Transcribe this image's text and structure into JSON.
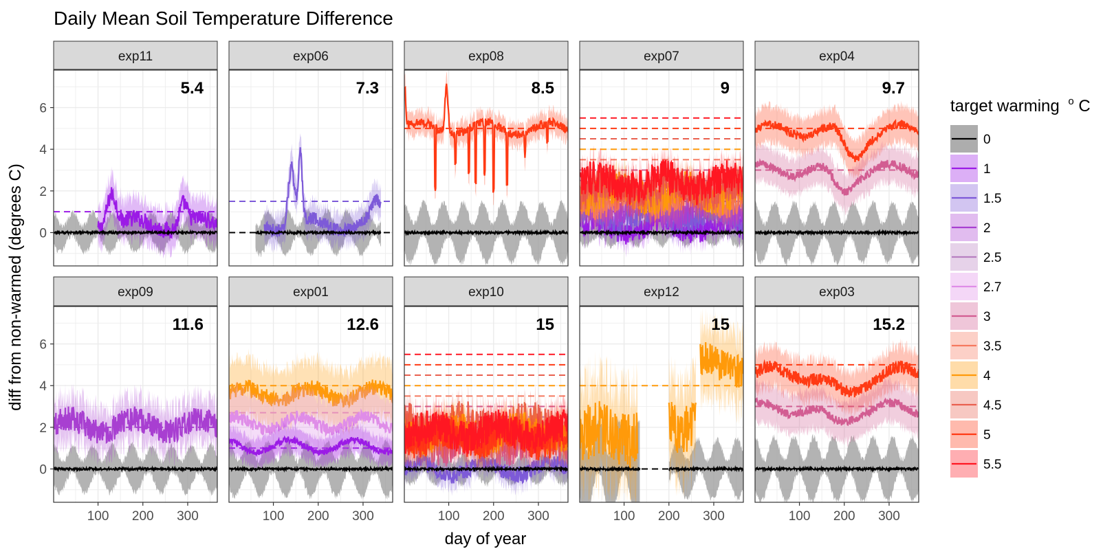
{
  "chart_data": {
    "type": "line",
    "title": "Daily Mean Soil Temperature Difference",
    "xlabel": "day of year",
    "ylabel": "diff from non-warmed (degrees C)",
    "xlim": [
      1,
      366
    ],
    "ylim": [
      -1.6,
      7.8
    ],
    "x_ticks": [
      100,
      200,
      300
    ],
    "y_ticks": [
      0,
      2,
      4,
      6
    ],
    "grid": true,
    "legend": {
      "title": "target warming",
      "title_sup": "o",
      "title_suffix": "C",
      "placement": "right",
      "entries": [
        {
          "label": "0",
          "color": "#000000"
        },
        {
          "label": "1",
          "color": "#9b1be6"
        },
        {
          "label": "1.5",
          "color": "#7d5ad8"
        },
        {
          "label": "2",
          "color": "#a83fd1"
        },
        {
          "label": "2.5",
          "color": "#b77ec0"
        },
        {
          "label": "2.7",
          "color": "#df8de8"
        },
        {
          "label": "3",
          "color": "#d25d92"
        },
        {
          "label": "3.5",
          "color": "#f5795f"
        },
        {
          "label": "4",
          "color": "#ff9a0a"
        },
        {
          "label": "4.5",
          "color": "#e9604f"
        },
        {
          "label": "5",
          "color": "#ff3a14"
        },
        {
          "label": "5.5",
          "color": "#ff1722"
        }
      ]
    },
    "panels": [
      {
        "name": "exp11",
        "label": "5.4",
        "targets": [
          1
        ],
        "series": [
          {
            "target": 1,
            "start": 100,
            "end": 366,
            "base": 0.4,
            "amp": 0.4,
            "band": 0.8,
            "spikes": [
              [
                130,
                1.6,
                15
              ],
              [
                290,
                1.0,
                12
              ]
            ]
          }
        ],
        "control": {
          "start": 1,
          "end": 366,
          "band": 0.8
        }
      },
      {
        "name": "exp06",
        "label": "7.3",
        "targets": [
          1.5
        ],
        "series": [
          {
            "target": 1.5,
            "start": 80,
            "end": 340,
            "base": 0.4,
            "amp": 0.3,
            "band": 0.6,
            "spikes": [
              [
                140,
                2.8,
                10
              ],
              [
                160,
                3.2,
                6
              ],
              [
                330,
                0.9,
                15
              ]
            ]
          }
        ],
        "control": {
          "start": 60,
          "end": 340,
          "band": 0.9
        }
      },
      {
        "name": "exp08",
        "label": "8.5",
        "targets": [
          5
        ],
        "series": [
          {
            "target": 5,
            "start": 1,
            "end": 366,
            "base": 5.0,
            "amp": 0.2,
            "band": 0.4,
            "spikes": [
              [
                95,
                2.2,
                5
              ],
              [
                2,
                2.0,
                3
              ]
            ],
            "dips": [
              [
                70,
                3.0
              ],
              [
                115,
                1.5
              ],
              [
                145,
                2.2
              ],
              [
                160,
                2.8
              ],
              [
                180,
                2.4
              ],
              [
                200,
                3.2
              ],
              [
                230,
                2.5
              ],
              [
                270,
                1.0
              ],
              [
                320,
                0.9
              ]
            ]
          }
        ],
        "control": {
          "start": 1,
          "end": 366,
          "band": 1.3
        }
      },
      {
        "name": "exp07",
        "label": "9",
        "targets": [
          1,
          1.5,
          2,
          2.5,
          3,
          3.5,
          4,
          4.5,
          5,
          5.5
        ],
        "series": [
          {
            "target": 1,
            "start": 1,
            "end": 366,
            "base": 0.3,
            "amp": 0.6,
            "band": 0.4
          },
          {
            "target": 1.5,
            "start": 1,
            "end": 366,
            "base": 0.8,
            "amp": 0.6,
            "band": 0.4
          },
          {
            "target": 2,
            "start": 1,
            "end": 366,
            "base": 1.1,
            "amp": 0.7,
            "band": 0.4
          },
          {
            "target": 3.5,
            "start": 1,
            "end": 366,
            "base": 1.6,
            "amp": 0.7,
            "band": 0.5
          },
          {
            "target": 4,
            "start": 1,
            "end": 366,
            "base": 1.9,
            "amp": 0.8,
            "band": 0.5
          },
          {
            "target": 4.5,
            "start": 1,
            "end": 366,
            "base": 2.1,
            "amp": 0.8,
            "band": 0.5
          },
          {
            "target": 5.5,
            "start": 1,
            "end": 366,
            "base": 2.4,
            "amp": 0.8,
            "band": 0.5
          }
        ],
        "control": {
          "start": 1,
          "end": 366,
          "band": 0.5
        }
      },
      {
        "name": "exp04",
        "label": "9.7",
        "targets": [
          3,
          5
        ],
        "series": [
          {
            "target": 5,
            "start": 1,
            "end": 366,
            "base": 4.9,
            "amp": 0.2,
            "band": 0.7,
            "trough": [
              220,
              1.3,
              30
            ]
          },
          {
            "target": 3,
            "start": 1,
            "end": 366,
            "base": 3.0,
            "amp": 0.2,
            "band": 0.7,
            "trough": [
              195,
              1.0,
              30
            ]
          }
        ],
        "control": {
          "start": 1,
          "end": 366,
          "band": 1.3
        }
      },
      {
        "name": "exp09",
        "label": "11.6",
        "targets": [
          2
        ],
        "series": [
          {
            "target": 2,
            "start": 1,
            "end": 366,
            "base": 2.1,
            "amp": 0.6,
            "band": 0.9
          }
        ],
        "control": {
          "start": 1,
          "end": 366,
          "band": 1.0
        }
      },
      {
        "name": "exp01",
        "label": "12.6",
        "targets": [
          1,
          2.7,
          4
        ],
        "series": [
          {
            "target": 4,
            "start": 1,
            "end": 366,
            "base": 3.6,
            "amp": 0.4,
            "band": 1.2
          },
          {
            "target": 2.7,
            "start": 1,
            "end": 366,
            "base": 2.2,
            "amp": 0.3,
            "band": 1.2
          },
          {
            "target": 1,
            "start": 1,
            "end": 366,
            "base": 1.1,
            "amp": 0.15,
            "band": 0.5
          }
        ],
        "control": {
          "start": 1,
          "end": 366,
          "band": 1.2
        }
      },
      {
        "name": "exp10",
        "label": "15",
        "targets": [
          1.5,
          2,
          2.5,
          3,
          3.5,
          4,
          4.5,
          5,
          5.5
        ],
        "series": [
          {
            "target": 1.5,
            "start": 1,
            "end": 366,
            "base": 0.0,
            "amp": 0.4,
            "band": 0.4
          },
          {
            "target": 3,
            "start": 1,
            "end": 366,
            "base": 1.2,
            "amp": 0.8,
            "band": 0.5
          },
          {
            "target": 4.5,
            "start": 1,
            "end": 366,
            "base": 2.0,
            "amp": 1.0,
            "band": 0.6
          },
          {
            "target": 4,
            "start": 1,
            "end": 366,
            "base": 1.7,
            "amp": 0.8,
            "band": 0.6
          },
          {
            "target": 5,
            "start": 1,
            "end": 366,
            "base": 1.5,
            "amp": 0.8,
            "band": 0.6
          },
          {
            "target": 5.5,
            "start": 1,
            "end": 366,
            "base": 1.8,
            "amp": 0.8,
            "band": 0.6
          }
        ],
        "control": {
          "start": 1,
          "end": 366,
          "band": 0.6
        }
      },
      {
        "name": "exp12",
        "label": "15",
        "targets": [
          4
        ],
        "series": [
          {
            "target": 4,
            "start": 1,
            "end": 130,
            "base": 1.6,
            "amp": 1.4,
            "band": 2.2
          },
          {
            "target": 4,
            "start": 200,
            "end": 260,
            "base": 2.2,
            "amp": 1.2,
            "band": 2.0
          },
          {
            "target": 4,
            "start": 270,
            "end": 366,
            "base": 5.0,
            "amp": 0.8,
            "band": 1.5
          }
        ],
        "control_segments": [
          [
            1,
            135,
            2.2
          ],
          [
            200,
            366,
            1.3
          ]
        ]
      },
      {
        "name": "exp03",
        "label": "15.2",
        "targets": [
          3,
          5
        ],
        "series": [
          {
            "target": 5,
            "start": 1,
            "end": 366,
            "base": 4.6,
            "amp": 0.3,
            "band": 0.8,
            "trough": [
              200,
              1.0,
              50
            ]
          },
          {
            "target": 3,
            "start": 1,
            "end": 366,
            "base": 2.9,
            "amp": 0.2,
            "band": 0.8,
            "trough": [
              180,
              0.7,
              40
            ]
          }
        ],
        "control": {
          "start": 1,
          "end": 366,
          "band": 1.4
        }
      }
    ]
  }
}
